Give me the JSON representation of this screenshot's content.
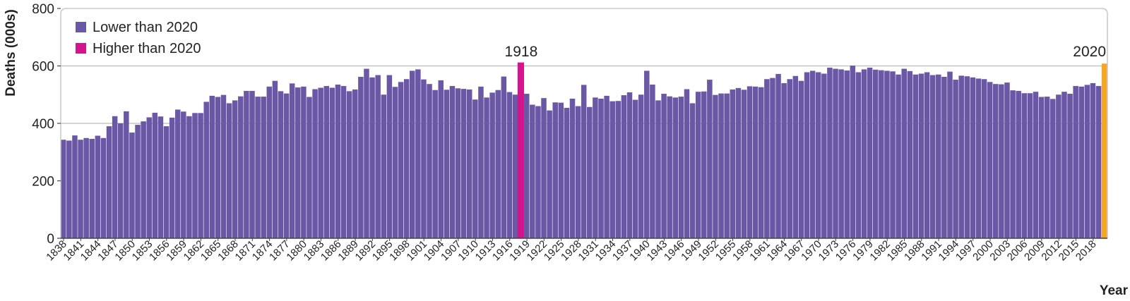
{
  "chart_data": {
    "type": "bar",
    "xlabel": "Year",
    "ylabel": "Deaths (000s)",
    "ylim": [
      0,
      800
    ],
    "yticks": [
      0,
      200,
      400,
      600,
      800
    ],
    "gridlines": [
      400,
      600
    ],
    "legend_position": "top-left",
    "legend": [
      {
        "label": "Lower than 2020",
        "color": "#6a57a6"
      },
      {
        "label": "Higher than 2020",
        "color": "#d4148c"
      }
    ],
    "colors": {
      "lower": "#6a57a6",
      "higher": "#d4148c",
      "reference": "#f5a623",
      "grid": "#bbbbbb",
      "frame": "#c8c8c8"
    },
    "annotations": [
      {
        "year": 1918,
        "label": "1918"
      },
      {
        "year": 2020,
        "label": "2020"
      }
    ],
    "series": [
      {
        "start_year": 1838,
        "highlight_year": 1918,
        "reference_year": 2020,
        "tick_every": 3,
        "values": [
          343,
          340,
          358,
          343,
          349,
          346,
          357,
          349,
          390,
          425,
          400,
          442,
          368,
          395,
          407,
          421,
          437,
          424,
          390,
          420,
          448,
          441,
          425,
          436,
          436,
          475,
          496,
          492,
          499,
          470,
          480,
          494,
          513,
          513,
          493,
          493,
          528,
          548,
          512,
          504,
          539,
          525,
          528,
          492,
          519,
          524,
          530,
          524,
          535,
          530,
          512,
          518,
          562,
          590,
          560,
          568,
          500,
          568,
          527,
          544,
          554,
          583,
          588,
          553,
          537,
          516,
          550,
          517,
          530,
          522,
          520,
          518,
          483,
          528,
          490,
          507,
          516,
          563,
          509,
          500,
          612,
          503,
          465,
          460,
          488,
          445,
          473,
          472,
          454,
          486,
          460,
          534,
          457,
          490,
          486,
          496,
          477,
          478,
          498,
          508,
          482,
          500,
          583,
          535,
          480,
          503,
          494,
          490,
          493,
          519,
          470,
          510,
          511,
          552,
          499,
          504,
          504,
          518,
          523,
          517,
          529,
          528,
          526,
          554,
          558,
          572,
          540,
          554,
          565,
          548,
          578,
          583,
          578,
          573,
          594,
          590,
          588,
          584,
          601,
          578,
          588,
          594,
          587,
          585,
          583,
          581,
          570,
          590,
          582,
          570,
          573,
          578,
          568,
          570,
          562,
          580,
          552,
          566,
          564,
          560,
          556,
          554,
          544,
          537,
          536,
          542,
          515,
          513,
          505,
          505,
          510,
          492,
          493,
          485,
          500,
          510,
          503,
          530,
          528,
          534,
          540,
          530,
          608
        ]
      }
    ]
  }
}
